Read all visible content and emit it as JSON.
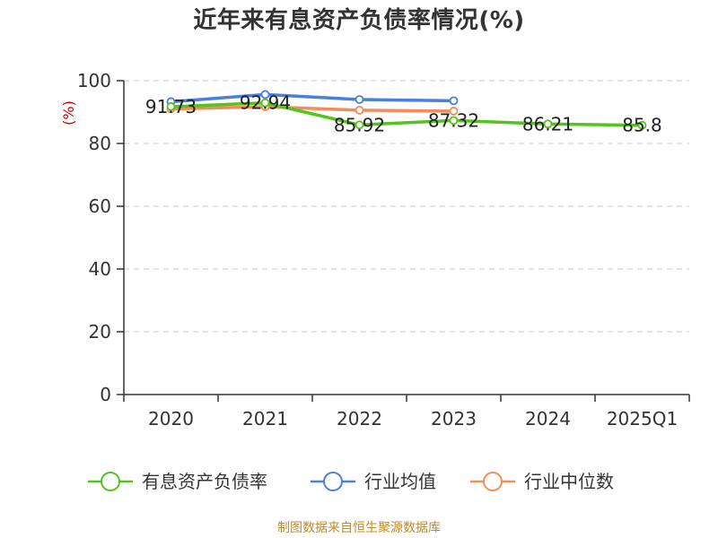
{
  "title": "近年来有息资产负债率情况(%)",
  "source": "制图数据来自恒生聚源数据库",
  "chart_data": {
    "type": "line",
    "unit_label": "(%)",
    "categories": [
      "2020",
      "2021",
      "2022",
      "2023",
      "2024",
      "2025Q1"
    ],
    "ylim": [
      0,
      100
    ],
    "yticks": [
      0,
      20,
      40,
      60,
      80,
      100
    ],
    "grid": true,
    "legend_position": "bottom",
    "series": [
      {
        "name": "有息资产负债率",
        "color": "#52c41a",
        "values": [
          91.73,
          92.94,
          85.92,
          87.32,
          86.21,
          85.8
        ],
        "labels": [
          "91.73",
          "92.94",
          "85.92",
          "87.32",
          "86.21",
          "85.8"
        ]
      },
      {
        "name": "行业均值",
        "color": "#4a7fdc",
        "values": [
          93.3,
          95.6,
          94.0,
          93.6,
          null,
          null
        ]
      },
      {
        "name": "行业中位数",
        "color": "#f28c5a",
        "values": [
          91.0,
          91.7,
          90.6,
          90.3,
          null,
          null
        ]
      }
    ]
  }
}
